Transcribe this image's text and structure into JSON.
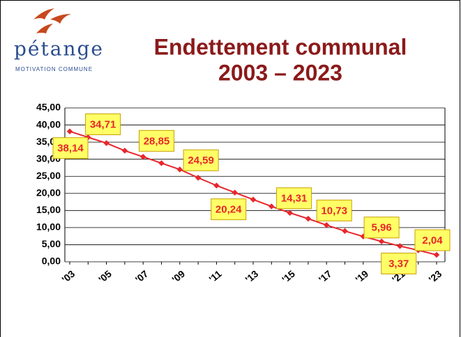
{
  "logo": {
    "name": "pétange",
    "tagline": "MOTIVATION COMMUNE"
  },
  "chart_data": {
    "type": "line",
    "title": [
      "Endettement communal",
      "2003 – 2023"
    ],
    "categories": [
      "'03",
      null,
      "'05",
      null,
      "'07",
      null,
      "'09",
      null,
      "'11",
      null,
      "'13",
      null,
      "'15",
      null,
      "'17",
      null,
      "'19",
      null,
      "'21",
      null,
      "'23"
    ],
    "series": [
      {
        "name": "Endettement",
        "color": "#e8262b",
        "values": [
          38.14,
          36.4,
          34.71,
          32.5,
          30.7,
          28.85,
          27.0,
          24.59,
          22.3,
          20.24,
          18.2,
          16.2,
          14.31,
          12.6,
          10.73,
          9.0,
          7.4,
          5.96,
          4.6,
          3.37,
          2.04
        ],
        "value_labels": [
          "38,14",
          null,
          "34,71",
          null,
          null,
          "28,85",
          null,
          "24,59",
          null,
          "20,24",
          null,
          null,
          "14,31",
          null,
          "10,73",
          null,
          null,
          "5,96",
          null,
          "3,37",
          "2,04"
        ]
      }
    ],
    "ylim": [
      0,
      45
    ],
    "yticks": [
      {
        "value": 0,
        "label": "0,00"
      },
      {
        "value": 5,
        "label": "5,00"
      },
      {
        "value": 10,
        "label": "10,00"
      },
      {
        "value": 15,
        "label": "15,00"
      },
      {
        "value": 20,
        "label": "20,00"
      },
      {
        "value": 25,
        "label": "25,00"
      },
      {
        "value": 30,
        "label": "30,00"
      },
      {
        "value": 35,
        "label": "35,00"
      },
      {
        "value": 40,
        "label": "40,00"
      },
      {
        "value": 45,
        "label": "45,00"
      }
    ],
    "grid": true
  }
}
